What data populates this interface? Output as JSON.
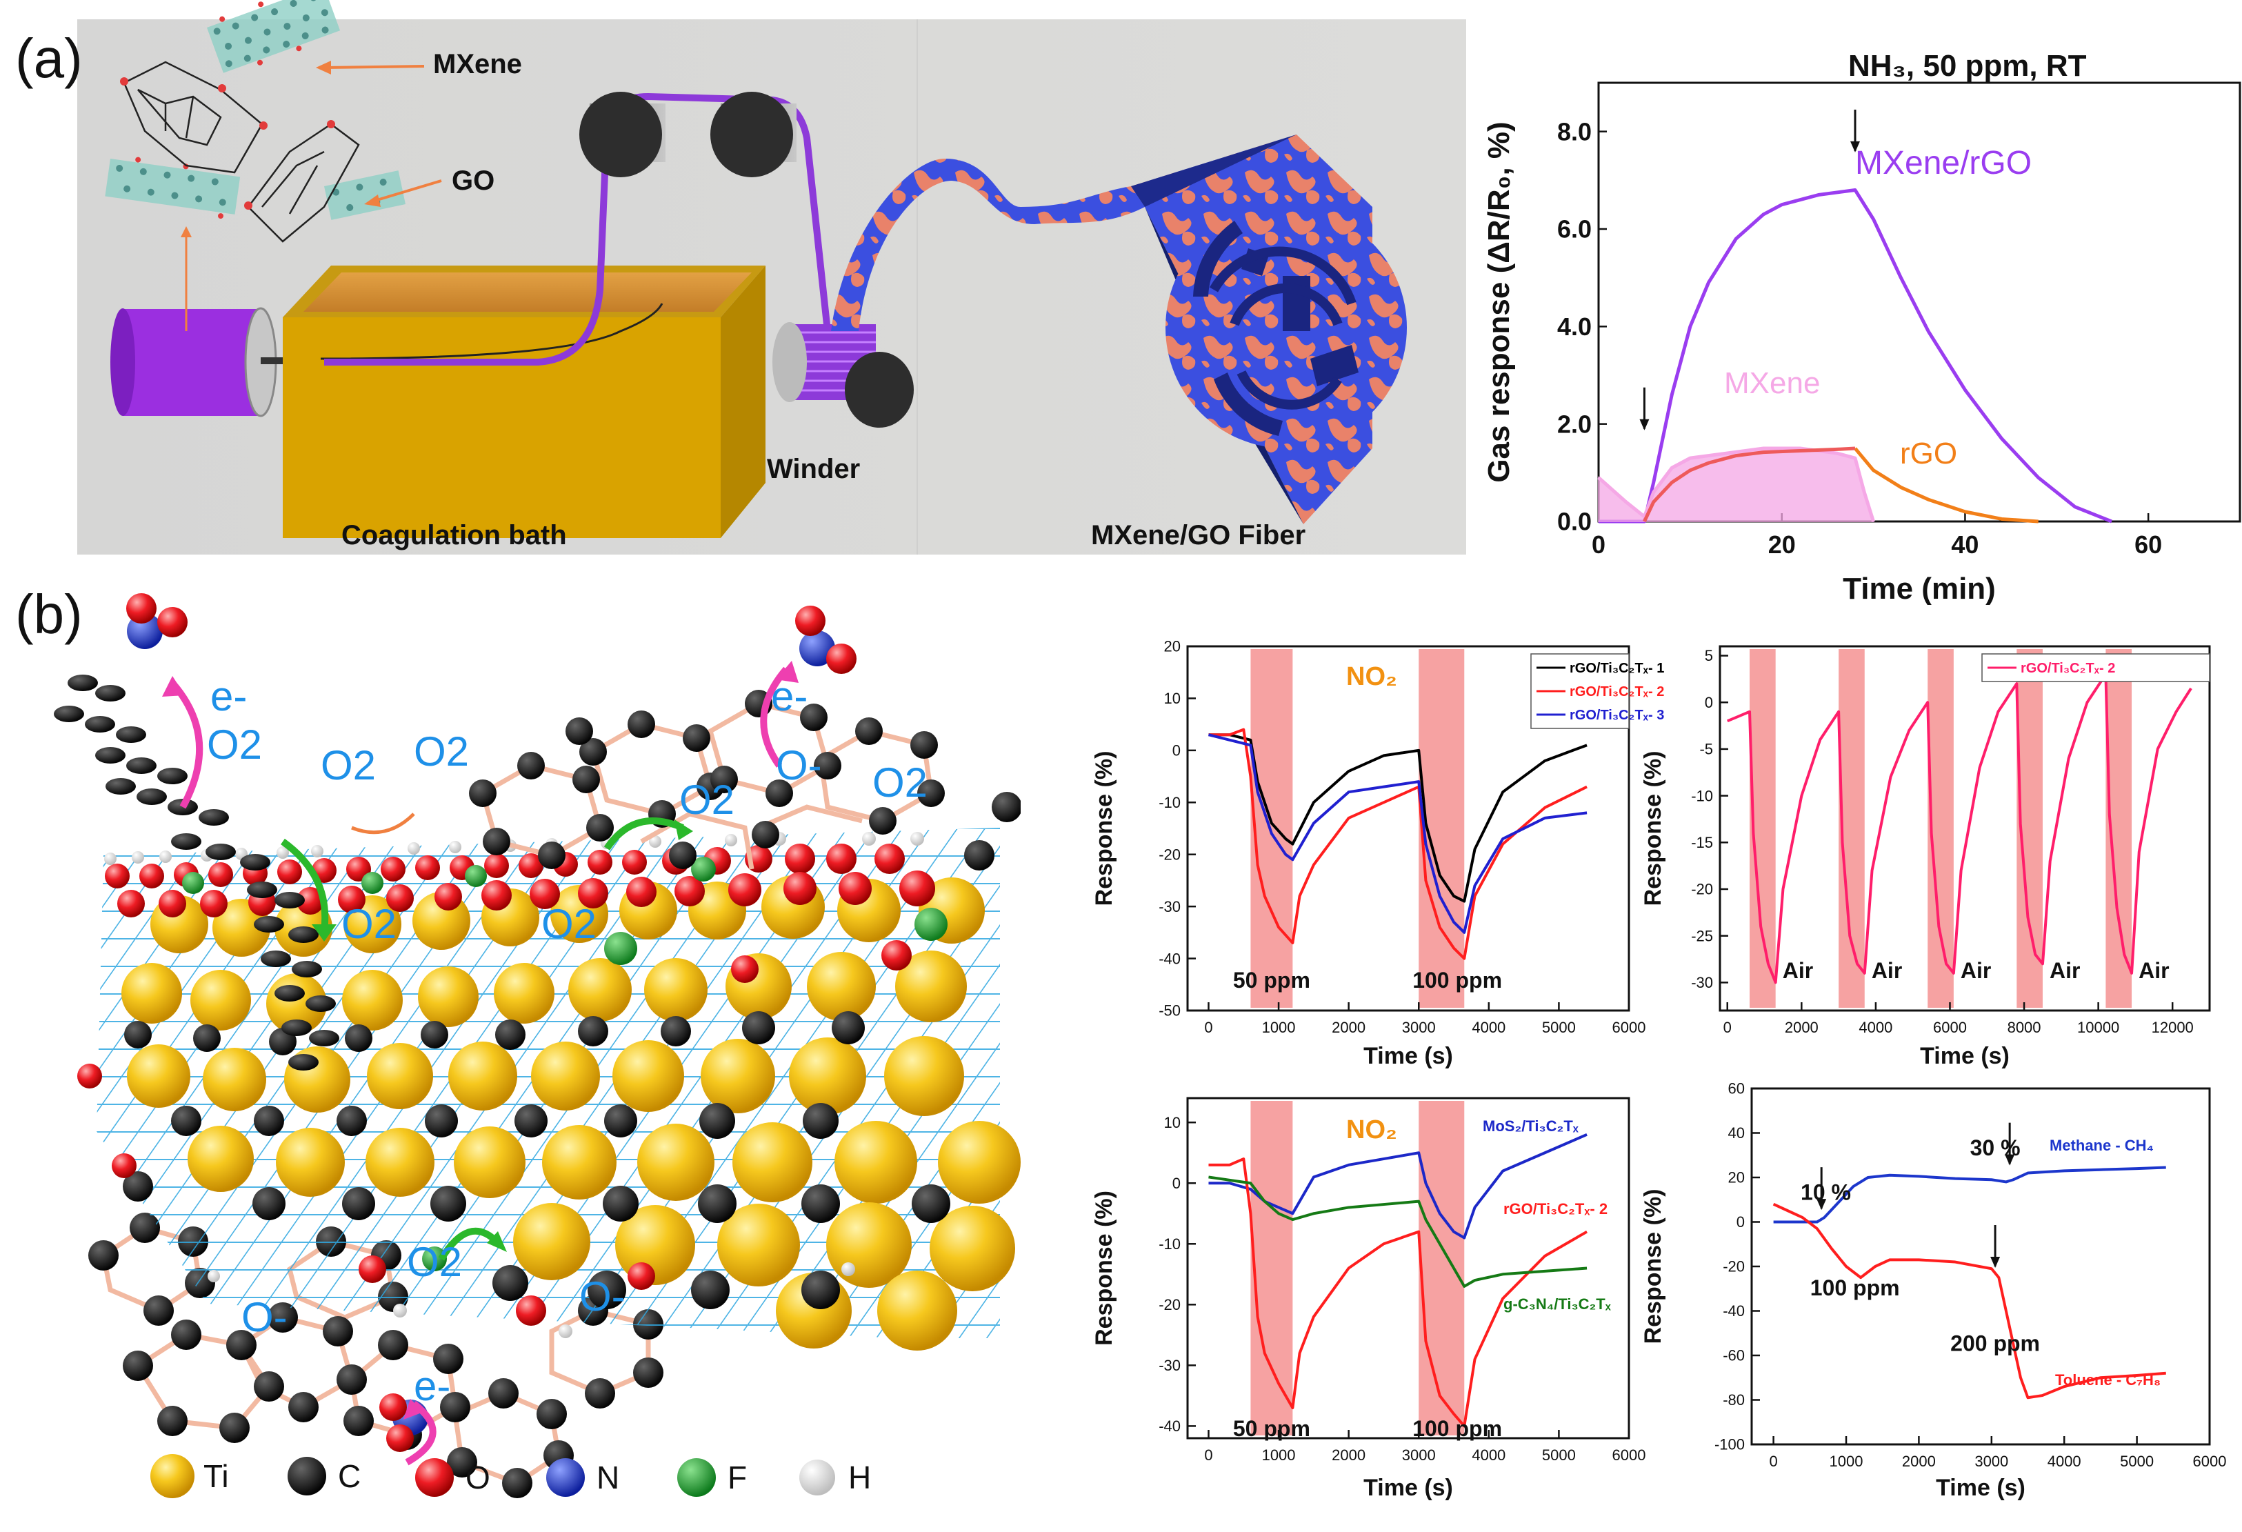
{
  "panel_a": {
    "label": "(a)",
    "schematic": {
      "labels": {
        "mxene": "MXene",
        "go": "GO",
        "winder": "Winder",
        "bath": "Coagulation bath",
        "fiber": "MXene/GO Fiber"
      },
      "colors": {
        "background": "#d7d8d7",
        "bath": "#d9a300",
        "fiber": "#8d3ad9",
        "fiber_pattern": "#e9826a",
        "fiber_base": "#3b4fe0"
      }
    }
  },
  "panel_b": {
    "label": "(b)",
    "schematic": {
      "labels": {
        "e1": "e-",
        "e2": "e-",
        "e3": "e-",
        "o2_1": "O2",
        "o2_2": "O2",
        "o2_3": "O2",
        "o2_4": "O2",
        "o2_5": "O2",
        "o2_6": "O2",
        "o2_7": "O2",
        "o2_8": "O2",
        "ominus1": "O-",
        "ominus2": "O-",
        "ominus3": "O-"
      },
      "legend": [
        {
          "symbol": "Ti",
          "color": "#f2c21a"
        },
        {
          "symbol": "C",
          "color": "#111111"
        },
        {
          "symbol": "O",
          "color": "#e8202a"
        },
        {
          "symbol": "N",
          "color": "#1d3cc9"
        },
        {
          "symbol": "F",
          "color": "#1f9b2c"
        },
        {
          "symbol": "H",
          "color": "#f1f1f1"
        }
      ]
    }
  },
  "chart_data": [
    {
      "id": "a-gas-response",
      "type": "line",
      "annotation": "NH₃, 50 ppm, RT",
      "xlabel": "Time (min)",
      "ylabel": "Gas response (ΔR/R₀, %)",
      "xlim": [
        0,
        70
      ],
      "ylim": [
        0,
        9
      ],
      "xticks": [
        0,
        20,
        40,
        60
      ],
      "yticks": [
        0.0,
        2.0,
        4.0,
        6.0,
        8.0
      ],
      "series": [
        {
          "name": "MXene/rGO",
          "color": "#9a3df0",
          "x": [
            0,
            5,
            6,
            8,
            10,
            12,
            15,
            18,
            20,
            24,
            28,
            30,
            33,
            36,
            40,
            44,
            48,
            52,
            56
          ],
          "y": [
            0,
            0,
            0.8,
            2.6,
            4.0,
            4.9,
            5.8,
            6.3,
            6.5,
            6.7,
            6.8,
            6.2,
            5.0,
            3.9,
            2.7,
            1.7,
            0.9,
            0.3,
            0.0
          ]
        },
        {
          "name": "MXene",
          "color": "#f5a8e6",
          "x": [
            0,
            3,
            5,
            6,
            8,
            10,
            14,
            18,
            22,
            26,
            28,
            29,
            30
          ],
          "y": [
            0.9,
            0.4,
            0.1,
            0.6,
            1.1,
            1.3,
            1.4,
            1.5,
            1.5,
            1.4,
            1.3,
            0.6,
            0.0
          ]
        },
        {
          "name": "rGO",
          "color": "#f27f18",
          "x": [
            28,
            30,
            33,
            36,
            40,
            44,
            48
          ],
          "y": [
            1.5,
            1.05,
            0.7,
            0.45,
            0.2,
            0.05,
            0.0
          ]
        },
        {
          "name": "",
          "color": "#ee5a5a",
          "x": [
            5,
            6,
            8,
            10,
            12,
            15,
            18,
            22,
            26,
            28
          ],
          "y": [
            0,
            0.4,
            0.8,
            1.05,
            1.2,
            1.35,
            1.42,
            1.45,
            1.48,
            1.5
          ]
        }
      ],
      "arrows": [
        {
          "x": 5,
          "y": 1.9
        },
        {
          "x": 28,
          "y": 7.6
        }
      ]
    },
    {
      "id": "b-chart1",
      "type": "line",
      "annotation": "NO₂",
      "xlabel": "Time (s)",
      "ylabel": "Response (%)",
      "xlim": [
        -300,
        6000
      ],
      "ylim": [
        -50,
        20
      ],
      "xticks": [
        0,
        1000,
        2000,
        3000,
        4000,
        5000,
        6000
      ],
      "yticks": [
        -50,
        -40,
        -30,
        -20,
        -10,
        0,
        10,
        20
      ],
      "bands": [
        [
          600,
          1200
        ],
        [
          3000,
          3650
        ]
      ],
      "labels": [
        {
          "text": "50 ppm",
          "x": 900
        },
        {
          "text": "100 ppm",
          "x": 3550
        }
      ],
      "series": [
        {
          "name": "rGO/Ti₃C₂Tₓ- 1",
          "color": "#000000",
          "x": [
            0,
            300,
            600,
            700,
            900,
            1100,
            1200,
            1500,
            2000,
            2500,
            3000,
            3100,
            3300,
            3500,
            3650,
            3800,
            4200,
            4800,
            5400
          ],
          "y": [
            3,
            3,
            2,
            -6,
            -14,
            -17,
            -18,
            -10,
            -4,
            -1,
            0,
            -14,
            -24,
            -28,
            -29,
            -19,
            -8,
            -2,
            1
          ]
        },
        {
          "name": "rGO/Ti₃C₂Tₓ- 2",
          "color": "#ff1e1e",
          "x": [
            0,
            300,
            500,
            600,
            700,
            800,
            1000,
            1200,
            1300,
            1500,
            2000,
            2500,
            3000,
            3100,
            3300,
            3500,
            3650,
            3800,
            4200,
            4800,
            5400
          ],
          "y": [
            3,
            3,
            4,
            -5,
            -22,
            -28,
            -34,
            -37,
            -28,
            -22,
            -13,
            -10,
            -7,
            -25,
            -34,
            -38,
            -40,
            -28,
            -18,
            -11,
            -7
          ]
        },
        {
          "name": "rGO/Ti₃C₂Tₓ- 3",
          "color": "#2020d0",
          "x": [
            0,
            300,
            600,
            700,
            900,
            1100,
            1200,
            1500,
            2000,
            2500,
            3000,
            3100,
            3300,
            3500,
            3650,
            3800,
            4200,
            4800,
            5400
          ],
          "y": [
            3,
            2,
            1,
            -8,
            -16,
            -20,
            -21,
            -14,
            -8,
            -7,
            -6,
            -18,
            -28,
            -33,
            -35,
            -26,
            -17,
            -13,
            -12
          ]
        }
      ]
    },
    {
      "id": "b-chart2",
      "type": "line",
      "xlabel": "Time (s)",
      "ylabel": "Response (%)",
      "xlim": [
        -200,
        13000
      ],
      "ylim": [
        -33,
        6
      ],
      "xticks": [
        0,
        2000,
        4000,
        6000,
        8000,
        10000,
        12000
      ],
      "yticks": [
        -30,
        -25,
        -20,
        -15,
        -10,
        -5,
        0,
        5
      ],
      "bands": [
        [
          600,
          1300
        ],
        [
          3000,
          3700
        ],
        [
          5400,
          6100
        ],
        [
          7800,
          8500
        ],
        [
          10200,
          10900
        ]
      ],
      "labels": [
        {
          "text": "Air",
          "x": 1900
        },
        {
          "text": "Air",
          "x": 4300
        },
        {
          "text": "Air",
          "x": 6700
        },
        {
          "text": "Air",
          "x": 9100
        },
        {
          "text": "Air",
          "x": 11500
        }
      ],
      "series": [
        {
          "name": "rGO/Ti₃C₂Tₓ- 2",
          "color": "#ff1e6a",
          "x": [
            0,
            300,
            600,
            700,
            900,
            1100,
            1300,
            1500,
            2000,
            2500,
            3000,
            3100,
            3300,
            3500,
            3700,
            3900,
            4400,
            4900,
            5400,
            5500,
            5700,
            5900,
            6100,
            6300,
            6800,
            7300,
            7800,
            7900,
            8100,
            8300,
            8500,
            8700,
            9200,
            9700,
            10200,
            10300,
            10500,
            10700,
            10900,
            11100,
            11600,
            12100,
            12500
          ],
          "y": [
            -2,
            -1.5,
            -1,
            -14,
            -24,
            -28,
            -30,
            -20,
            -10,
            -4,
            -1,
            -15,
            -25,
            -28,
            -29,
            -18,
            -8,
            -3,
            0,
            -14,
            -24,
            -28,
            -29,
            -18,
            -7,
            -1,
            2,
            -13,
            -23,
            -27,
            -28,
            -17,
            -6,
            0,
            3,
            -12,
            -22,
            -27,
            -29,
            -16,
            -5,
            -1,
            1.5
          ]
        }
      ]
    },
    {
      "id": "b-chart3",
      "type": "line",
      "annotation": "NO₂",
      "xlabel": "Time (s)",
      "ylabel": "Response (%)",
      "xlim": [
        -300,
        6000
      ],
      "ylim": [
        -42,
        14
      ],
      "xticks": [
        0,
        1000,
        2000,
        3000,
        4000,
        5000,
        6000
      ],
      "yticks": [
        -40,
        -30,
        -20,
        -10,
        0,
        10
      ],
      "bands": [
        [
          600,
          1200
        ],
        [
          3000,
          3650
        ]
      ],
      "labels": [
        {
          "text": "50 ppm",
          "x": 900
        },
        {
          "text": "100 ppm",
          "x": 3550
        }
      ],
      "series": [
        {
          "name": "MoS₂/Ti₃C₂Tₓ",
          "color": "#1c28c8",
          "x": [
            0,
            300,
            600,
            800,
            1000,
            1200,
            1500,
            2000,
            2500,
            3000,
            3100,
            3300,
            3500,
            3650,
            3800,
            4200,
            4800,
            5400
          ],
          "y": [
            0,
            0,
            -1,
            -3,
            -4,
            -5,
            1,
            3,
            4,
            5,
            0,
            -5,
            -8,
            -9,
            -4,
            2,
            5,
            8
          ]
        },
        {
          "name": "rGO/Ti₃C₂Tₓ- 2",
          "color": "#ff1e1e",
          "x": [
            0,
            300,
            500,
            600,
            700,
            800,
            1000,
            1200,
            1300,
            1500,
            2000,
            2500,
            3000,
            3100,
            3300,
            3500,
            3650,
            3800,
            4200,
            4800,
            5400
          ],
          "y": [
            3,
            3,
            4,
            -5,
            -22,
            -28,
            -33,
            -37,
            -28,
            -22,
            -14,
            -10,
            -8,
            -26,
            -35,
            -38,
            -40,
            -29,
            -19,
            -12,
            -8
          ]
        },
        {
          "name": "g-C₃N₄/Ti₃C₂Tₓ",
          "color": "#157a15",
          "x": [
            0,
            300,
            600,
            800,
            1000,
            1200,
            1500,
            2000,
            2500,
            3000,
            3100,
            3300,
            3500,
            3650,
            3800,
            4200,
            4800,
            5400
          ],
          "y": [
            1,
            0.5,
            0,
            -3,
            -5,
            -6,
            -5,
            -4,
            -3.5,
            -3,
            -6,
            -10,
            -14,
            -17,
            -16,
            -15,
            -14.5,
            -14
          ]
        }
      ]
    },
    {
      "id": "b-chart4",
      "type": "line",
      "xlabel": "Time (s)",
      "ylabel": "Response (%)",
      "xlim": [
        -300,
        6000
      ],
      "ylim": [
        -100,
        60
      ],
      "xticks": [
        0,
        1000,
        2000,
        3000,
        4000,
        5000,
        6000
      ],
      "yticks": [
        -100,
        -80,
        -60,
        -40,
        -20,
        0,
        20,
        40,
        60
      ],
      "annotations": [
        {
          "text": "10 %",
          "x": 720,
          "y": 10
        },
        {
          "text": "30 %",
          "x": 3050,
          "y": 30
        },
        {
          "text": "100 ppm",
          "x": 1120,
          "y": -33
        },
        {
          "text": "200 ppm",
          "x": 3050,
          "y": -58
        }
      ],
      "series": [
        {
          "name": "Methane - CH₄",
          "color": "#1c36cc",
          "x": [
            0,
            300,
            600,
            700,
            900,
            1100,
            1300,
            1600,
            2000,
            2500,
            3000,
            3200,
            3300,
            3500,
            4000,
            4500,
            5000,
            5400
          ],
          "y": [
            0,
            0,
            0,
            2,
            9,
            16,
            20,
            21,
            20.5,
            19.5,
            19,
            18,
            19,
            22,
            23,
            23.5,
            24,
            24.5
          ]
        },
        {
          "name": "Toluene - C₇H₈",
          "color": "#ff1e1e",
          "x": [
            0,
            200,
            400,
            600,
            800,
            1000,
            1200,
            1400,
            1600,
            2000,
            2500,
            3000,
            3100,
            3200,
            3300,
            3400,
            3500,
            3700,
            4000,
            4500,
            5000,
            5400
          ],
          "y": [
            8,
            5,
            2,
            -3,
            -12,
            -20,
            -25,
            -20,
            -17,
            -17,
            -18,
            -21,
            -25,
            -40,
            -55,
            -70,
            -79,
            -78,
            -74,
            -70,
            -69,
            -68
          ]
        }
      ],
      "arrows": [
        {
          "x": 660,
          "y": 6
        },
        {
          "x": 3250,
          "y": 26
        },
        {
          "x": 3050,
          "y": -20
        }
      ]
    }
  ]
}
